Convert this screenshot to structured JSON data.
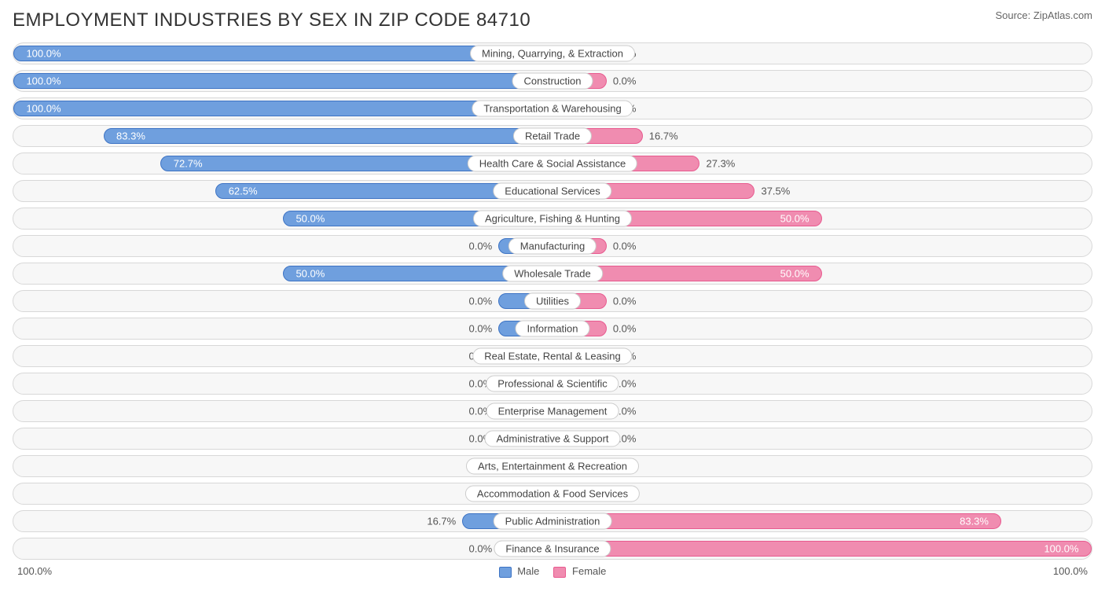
{
  "title": "EMPLOYMENT INDUSTRIES BY SEX IN ZIP CODE 84710",
  "source": "Source: ZipAtlas.com",
  "colors": {
    "male_fill": "#6f9fde",
    "male_border": "#3d73c4",
    "female_fill": "#f08cb0",
    "female_border": "#e85a8f",
    "row_bg": "#f7f7f7",
    "row_border": "#d8d8d8",
    "text": "#555555",
    "bg": "#ffffff"
  },
  "chart": {
    "type": "diverging-bar",
    "axis_min_label": "100.0%",
    "axis_max_label": "100.0%",
    "min_bar_pct": 10,
    "rows": [
      {
        "label": "Mining, Quarrying, & Extraction",
        "male": 100.0,
        "female": 0.0
      },
      {
        "label": "Construction",
        "male": 100.0,
        "female": 0.0
      },
      {
        "label": "Transportation & Warehousing",
        "male": 100.0,
        "female": 0.0
      },
      {
        "label": "Retail Trade",
        "male": 83.3,
        "female": 16.7
      },
      {
        "label": "Health Care & Social Assistance",
        "male": 72.7,
        "female": 27.3
      },
      {
        "label": "Educational Services",
        "male": 62.5,
        "female": 37.5
      },
      {
        "label": "Agriculture, Fishing & Hunting",
        "male": 50.0,
        "female": 50.0
      },
      {
        "label": "Manufacturing",
        "male": 0.0,
        "female": 0.0
      },
      {
        "label": "Wholesale Trade",
        "male": 50.0,
        "female": 50.0
      },
      {
        "label": "Utilities",
        "male": 0.0,
        "female": 0.0
      },
      {
        "label": "Information",
        "male": 0.0,
        "female": 0.0
      },
      {
        "label": "Real Estate, Rental & Leasing",
        "male": 0.0,
        "female": 0.0
      },
      {
        "label": "Professional & Scientific",
        "male": 0.0,
        "female": 0.0
      },
      {
        "label": "Enterprise Management",
        "male": 0.0,
        "female": 0.0
      },
      {
        "label": "Administrative & Support",
        "male": 0.0,
        "female": 0.0
      },
      {
        "label": "Arts, Entertainment & Recreation",
        "male": 0.0,
        "female": 0.0
      },
      {
        "label": "Accommodation & Food Services",
        "male": 0.0,
        "female": 0.0
      },
      {
        "label": "Public Administration",
        "male": 16.7,
        "female": 83.3
      },
      {
        "label": "Finance & Insurance",
        "male": 0.0,
        "female": 100.0
      }
    ]
  },
  "legend": {
    "male": "Male",
    "female": "Female"
  }
}
